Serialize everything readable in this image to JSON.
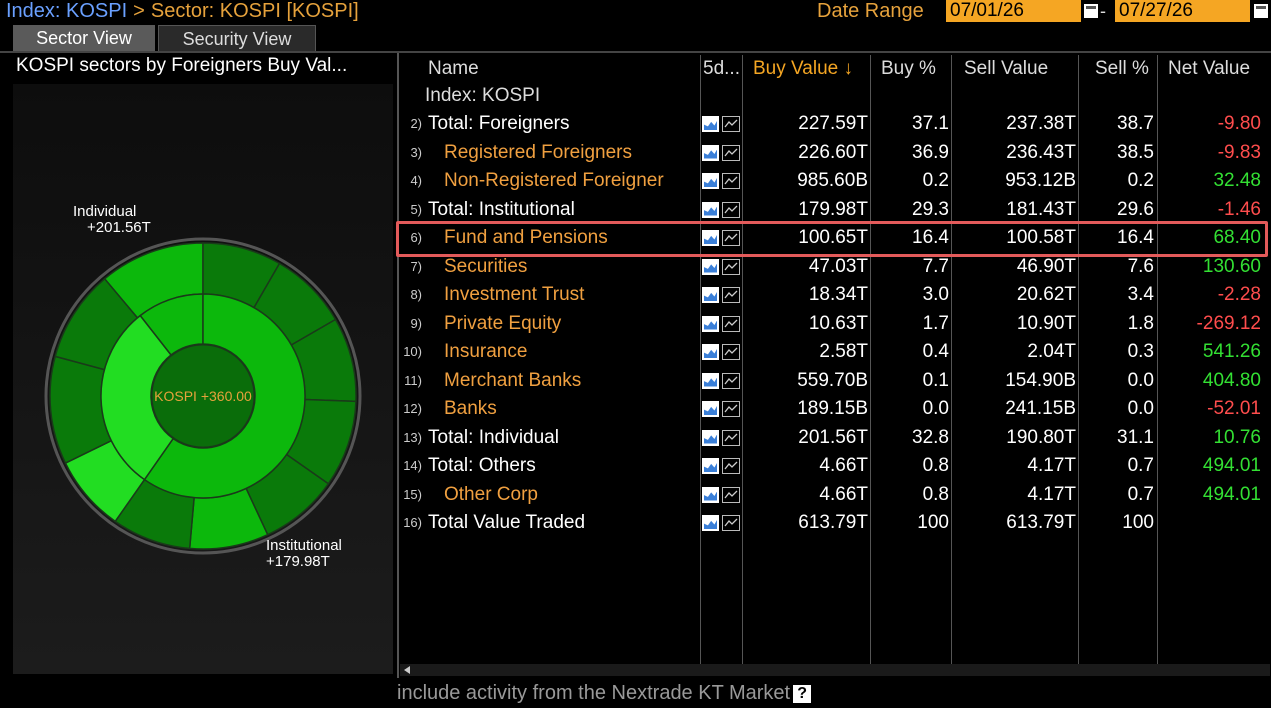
{
  "breadcrumb": {
    "index": "Index: KOSPI",
    "sector": "Sector: KOSPI [KOSPI]"
  },
  "date_range": {
    "label": "Date Range",
    "start": "07/01/26",
    "end": "07/27/26",
    "separator": "-"
  },
  "tabs": [
    {
      "label": "Sector View",
      "active": true
    },
    {
      "label": "Security View",
      "active": false
    }
  ],
  "left_panel": {
    "title": "KOSPI sectors by Foreigners Buy Val...",
    "center_label": "KOSPI  +360.00",
    "labels": [
      {
        "name": "Individual",
        "value": "+201.56T"
      },
      {
        "name": "Institutional",
        "value": "+179.98T"
      }
    ],
    "colors": {
      "dark": "#0a7a0a",
      "mid": "#0cb80c",
      "light": "#22dd22",
      "inner": "#0a6d0a"
    }
  },
  "table": {
    "columns": [
      "Name",
      "5d...",
      "Buy Value",
      "Buy %",
      "Sell Value",
      "Sell %",
      "Net Value"
    ],
    "sort_indicator": "↓",
    "group_label": "Index: KOSPI",
    "rows": [
      {
        "idx": "2)",
        "name": "Total: Foreigners",
        "sub": false,
        "buy": "227.59T",
        "buy_pct": "37.1",
        "sell": "237.38T",
        "sell_pct": "38.7",
        "net": "-9.80",
        "net_sign": "neg"
      },
      {
        "idx": "3)",
        "name": "Registered Foreigners",
        "sub": true,
        "buy": "226.60T",
        "buy_pct": "36.9",
        "sell": "236.43T",
        "sell_pct": "38.5",
        "net": "-9.83",
        "net_sign": "neg"
      },
      {
        "idx": "4)",
        "name": "Non-Registered Foreigner",
        "sub": true,
        "buy": "985.60B",
        "buy_pct": "0.2",
        "sell": "953.12B",
        "sell_pct": "0.2",
        "net": "32.48",
        "net_sign": "pos"
      },
      {
        "idx": "5)",
        "name": "Total: Institutional",
        "sub": false,
        "buy": "179.98T",
        "buy_pct": "29.3",
        "sell": "181.43T",
        "sell_pct": "29.6",
        "net": "-1.46",
        "net_sign": "neg"
      },
      {
        "idx": "6)",
        "name": "Fund and Pensions",
        "sub": true,
        "buy": "100.65T",
        "buy_pct": "16.4",
        "sell": "100.58T",
        "sell_pct": "16.4",
        "net": "68.40",
        "net_sign": "pos",
        "highlighted": true
      },
      {
        "idx": "7)",
        "name": "Securities",
        "sub": true,
        "buy": "47.03T",
        "buy_pct": "7.7",
        "sell": "46.90T",
        "sell_pct": "7.6",
        "net": "130.60",
        "net_sign": "pos"
      },
      {
        "idx": "8)",
        "name": "Investment Trust",
        "sub": true,
        "buy": "18.34T",
        "buy_pct": "3.0",
        "sell": "20.62T",
        "sell_pct": "3.4",
        "net": "-2.28",
        "net_sign": "neg"
      },
      {
        "idx": "9)",
        "name": "Private Equity",
        "sub": true,
        "buy": "10.63T",
        "buy_pct": "1.7",
        "sell": "10.90T",
        "sell_pct": "1.8",
        "net": "-269.12",
        "net_sign": "neg"
      },
      {
        "idx": "10)",
        "name": "Insurance",
        "sub": true,
        "buy": "2.58T",
        "buy_pct": "0.4",
        "sell": "2.04T",
        "sell_pct": "0.3",
        "net": "541.26",
        "net_sign": "pos"
      },
      {
        "idx": "11)",
        "name": "Merchant Banks",
        "sub": true,
        "buy": "559.70B",
        "buy_pct": "0.1",
        "sell": "154.90B",
        "sell_pct": "0.0",
        "net": "404.80",
        "net_sign": "pos"
      },
      {
        "idx": "12)",
        "name": "Banks",
        "sub": true,
        "buy": "189.15B",
        "buy_pct": "0.0",
        "sell": "241.15B",
        "sell_pct": "0.0",
        "net": "-52.01",
        "net_sign": "neg"
      },
      {
        "idx": "13)",
        "name": "Total: Individual",
        "sub": false,
        "buy": "201.56T",
        "buy_pct": "32.8",
        "sell": "190.80T",
        "sell_pct": "31.1",
        "net": "10.76",
        "net_sign": "pos"
      },
      {
        "idx": "14)",
        "name": "Total: Others",
        "sub": false,
        "buy": "4.66T",
        "buy_pct": "0.8",
        "sell": "4.17T",
        "sell_pct": "0.7",
        "net": "494.01",
        "net_sign": "pos"
      },
      {
        "idx": "15)",
        "name": "Other Corp",
        "sub": true,
        "buy": "4.66T",
        "buy_pct": "0.8",
        "sell": "4.17T",
        "sell_pct": "0.7",
        "net": "494.01",
        "net_sign": "pos"
      },
      {
        "idx": "16)",
        "name": "Total Value Traded",
        "sub": false,
        "buy": "613.79T",
        "buy_pct": "100",
        "sell": "613.79T",
        "sell_pct": "100",
        "net": "",
        "net_sign": "pos"
      }
    ]
  },
  "footer": {
    "text": "include activity from the Nextrade KT Market",
    "help": "?"
  }
}
